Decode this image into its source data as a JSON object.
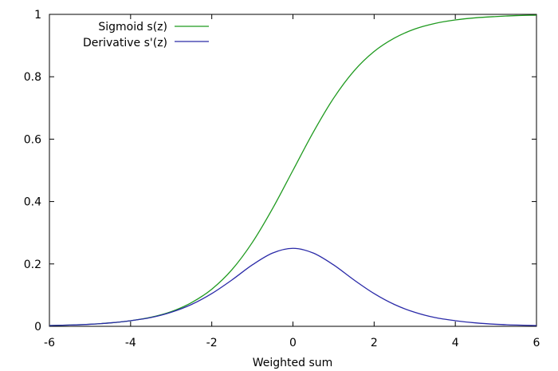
{
  "chart_data": {
    "type": "line",
    "title": "",
    "xlabel": "Weighted sum",
    "ylabel": "",
    "xlim": [
      -6,
      6
    ],
    "ylim": [
      0,
      1
    ],
    "grid": false,
    "legend_position": "top-left",
    "x_ticks": [
      "-6",
      "-4",
      "-2",
      "0",
      "2",
      "4",
      "6"
    ],
    "y_ticks": [
      "0",
      "0.2",
      "0.4",
      "0.6",
      "0.8",
      "1"
    ],
    "x": [
      -6,
      -5.5,
      -5,
      -4.5,
      -4,
      -3.5,
      -3,
      -2.5,
      -2,
      -1.5,
      -1,
      -0.5,
      0,
      0.5,
      1,
      1.5,
      2,
      2.5,
      3,
      3.5,
      4,
      4.5,
      5,
      5.5,
      6
    ],
    "series": [
      {
        "name": "Sigmoid s(z)",
        "color": "#1f9a1f",
        "values": [
          0.0025,
          0.0041,
          0.0067,
          0.011,
          0.018,
          0.029,
          0.047,
          0.076,
          0.119,
          0.182,
          0.269,
          0.378,
          0.5,
          0.622,
          0.731,
          0.818,
          0.881,
          0.924,
          0.953,
          0.971,
          0.982,
          0.989,
          0.993,
          0.996,
          0.9975
        ]
      },
      {
        "name": "Derivative s'(z)",
        "color": "#2a2aa8",
        "values": [
          0.0025,
          0.0041,
          0.0066,
          0.011,
          0.018,
          0.028,
          0.045,
          0.07,
          0.105,
          0.149,
          0.197,
          0.235,
          0.25,
          0.235,
          0.197,
          0.149,
          0.105,
          0.07,
          0.045,
          0.028,
          0.018,
          0.011,
          0.0066,
          0.0041,
          0.0025
        ]
      }
    ]
  }
}
